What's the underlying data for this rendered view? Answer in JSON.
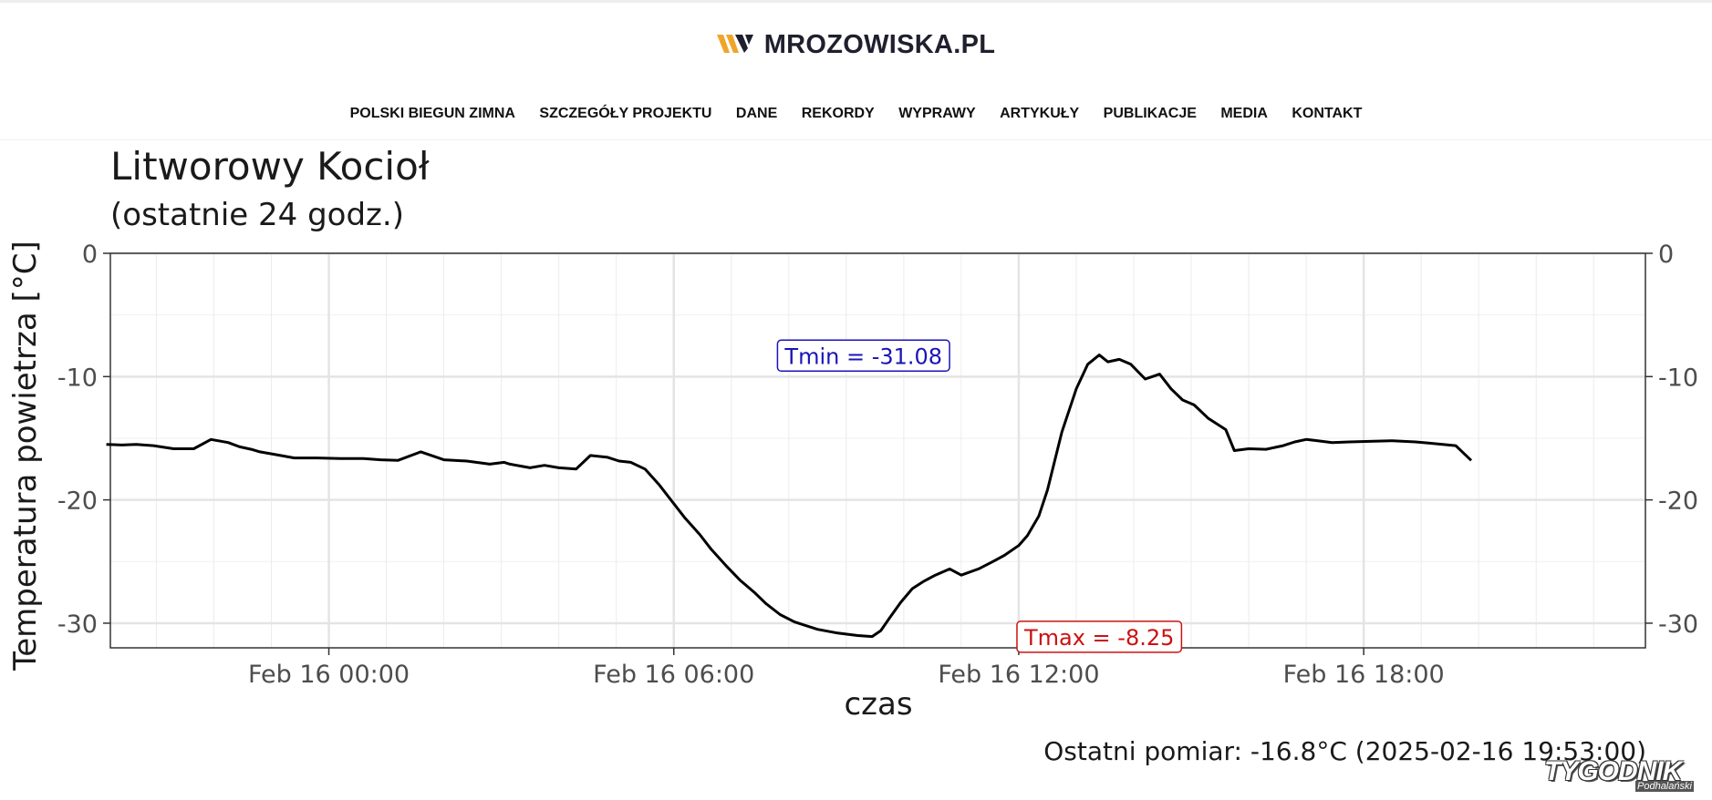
{
  "header": {
    "logo_text": "MROZOWISKA.PL",
    "nav": [
      "POLSKI BIEGUN ZIMNA",
      "SZCZEGÓŁY PROJEKTU",
      "DANE",
      "REKORDY",
      "WYPRAWY",
      "ARTYKUŁY",
      "PUBLIKACJE",
      "MEDIA",
      "KONTAKT"
    ]
  },
  "colors": {
    "logo_accent": "#f0a52a",
    "line": "#000000",
    "tmin_label": "#1a14b8",
    "tmax_label": "#cc1111"
  },
  "chart_data": {
    "type": "line",
    "title": "Litworowy Kocioł",
    "subtitle": "(ostatnie 24 godz.)",
    "xlabel": "czas",
    "ylabel": "Temperatura powietrza [°C]",
    "ylim": [
      -32,
      0
    ],
    "yticks": [
      0,
      -10,
      -20,
      -30
    ],
    "xlim_hours": [
      -3.8,
      22.9
    ],
    "xticks": [
      {
        "label": "Feb 16 00:00",
        "hour": 0
      },
      {
        "label": "Feb 16 06:00",
        "hour": 6
      },
      {
        "label": "Feb 16 12:00",
        "hour": 12
      },
      {
        "label": "Feb 16 18:00",
        "hour": 18
      }
    ],
    "grid": true,
    "secondary_y_axis": true,
    "annotations": {
      "tmin": {
        "text": "Tmin = -31.08",
        "hour": 9.3,
        "y": -8.3
      },
      "tmax": {
        "text": "Tmax = -8.25",
        "hour": 13.4,
        "y": -31.1
      }
    },
    "series": [
      {
        "hours": [
          -3.87,
          -3.6,
          -3.35,
          -3.05,
          -2.7,
          -2.35,
          -2.05,
          -1.75,
          -1.55,
          -1.35,
          -1.2,
          -0.95,
          -0.6,
          -0.2,
          0.2,
          0.6,
          0.9,
          1.2,
          1.6,
          2.0,
          2.4,
          2.8,
          3.05,
          3.15,
          3.5,
          3.75,
          4.0,
          4.3,
          4.55,
          4.85,
          5.05,
          5.25,
          5.5,
          5.75,
          6.0,
          6.2,
          6.45,
          6.65,
          6.9,
          7.15,
          7.4,
          7.6,
          7.85,
          8.1,
          8.5,
          8.85,
          9.2,
          9.45,
          9.6,
          9.75,
          9.95,
          10.15,
          10.35,
          10.55,
          10.8,
          11.0,
          11.3,
          11.55,
          11.75,
          12.0,
          12.15,
          12.35,
          12.5,
          12.75,
          13.0,
          13.2,
          13.4,
          13.55,
          13.75,
          13.95,
          14.2,
          14.45,
          14.65,
          14.85,
          15.05,
          15.3,
          15.6,
          15.75,
          16.0,
          16.3,
          16.6,
          16.8,
          17.0,
          17.2,
          17.45,
          17.75,
          18.1,
          18.5,
          18.9,
          19.15,
          19.6,
          19.87
        ],
        "values": [
          -15.5,
          -15.55,
          -15.5,
          -15.6,
          -15.85,
          -15.85,
          -15.1,
          -15.35,
          -15.7,
          -15.9,
          -16.1,
          -16.3,
          -16.6,
          -16.6,
          -16.65,
          -16.65,
          -16.75,
          -16.8,
          -16.1,
          -16.75,
          -16.85,
          -17.1,
          -16.95,
          -17.1,
          -17.4,
          -17.2,
          -17.4,
          -17.5,
          -16.4,
          -16.55,
          -16.85,
          -16.95,
          -17.5,
          -18.8,
          -20.3,
          -21.5,
          -22.8,
          -24.0,
          -25.3,
          -26.5,
          -27.5,
          -28.4,
          -29.3,
          -29.9,
          -30.5,
          -30.8,
          -31.0,
          -31.08,
          -30.6,
          -29.6,
          -28.3,
          -27.2,
          -26.6,
          -26.1,
          -25.6,
          -26.1,
          -25.6,
          -25.0,
          -24.5,
          -23.7,
          -22.9,
          -21.3,
          -19.2,
          -14.5,
          -11.0,
          -9.0,
          -8.25,
          -8.8,
          -8.6,
          -9.0,
          -10.2,
          -9.8,
          -11.0,
          -11.9,
          -12.3,
          -13.4,
          -14.3,
          -16.0,
          -15.85,
          -15.9,
          -15.6,
          -15.3,
          -15.1,
          -15.2,
          -15.35,
          -15.3,
          -15.25,
          -15.2,
          -15.3,
          -15.4,
          -15.6,
          -16.8
        ]
      }
    ],
    "last_measurement": "Ostatni pomiar: -16.8°C (2025-02-16 19:53:00)"
  },
  "watermark": {
    "text": "TYGODNIK",
    "sub": "Podhalański"
  }
}
